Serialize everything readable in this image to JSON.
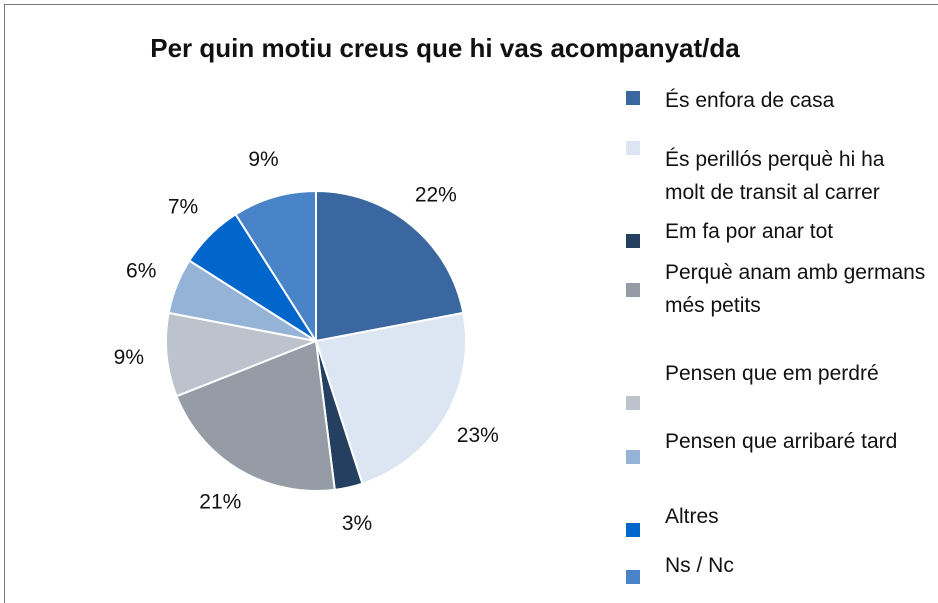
{
  "chart_data": {
    "type": "pie",
    "title": "Per quin motiu creus que hi vas acompanyat/da",
    "categories": [
      "És enfora de casa",
      "És perillós perquè hi ha molt de transit al carrer",
      "Em fa por anar tot",
      "Perquè anam amb germans més petits",
      "Pensen que em perdré",
      "Pensen que arribaré tard",
      "Altres",
      "Ns / Nc"
    ],
    "values": [
      22,
      23,
      3,
      21,
      9,
      6,
      7,
      9
    ],
    "value_labels": [
      "22%",
      "23%",
      "3%",
      "21%",
      "9%",
      "6%",
      "7%",
      "9%"
    ],
    "colors": [
      "#3b67a0",
      "#dce6f2",
      "#243f60",
      "#969ca5",
      "#bcc3cd",
      "#95b3d7",
      "#0066cc",
      "#4a84c8"
    ],
    "legend": "right"
  }
}
